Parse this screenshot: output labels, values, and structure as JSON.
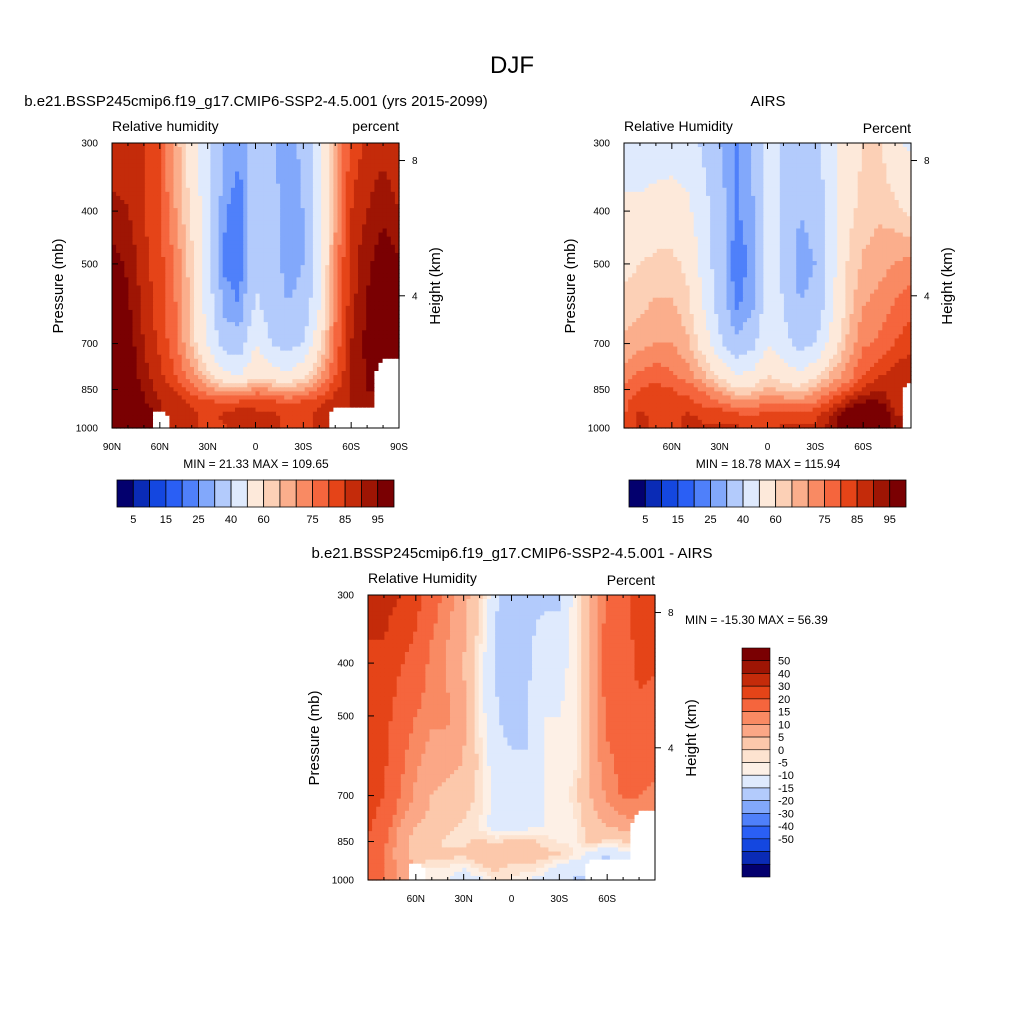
{
  "figure": {
    "title": "DJF",
    "palettes": {
      "absolute": [
        "#03006e",
        "#0a2bb6",
        "#1447e0",
        "#2a5ff5",
        "#4f80fa",
        "#82a8fb",
        "#b3cbfc",
        "#dfeafd",
        "#fde9da",
        "#fcd0b6",
        "#fbae8c",
        "#f98a63",
        "#f5653d",
        "#e54418",
        "#c42b0a",
        "#9e1504",
        "#7a0002"
      ],
      "difference": [
        "#03006e",
        "#0a2bb6",
        "#1447e0",
        "#2a5ff5",
        "#4f80fa",
        "#82a8fb",
        "#b3cbfc",
        "#dfeafd",
        "#fdf0e6",
        "#fde3d0",
        "#fcc8ab",
        "#fba786",
        "#f98a63",
        "#f5653d",
        "#e54418",
        "#c42b0a",
        "#9e1504",
        "#7a0002"
      ],
      "missing": "#ffffff"
    }
  },
  "chart_data": [
    {
      "type": "heatmap",
      "id": "model",
      "title": "b.e21.BSSP245cmip6.f19_g17.CMIP6-SSP2-4.5.001 (yrs 2015-2099)",
      "left_string": "Relative humidity",
      "right_string": "percent",
      "xlabel": "",
      "ylabel": "Pressure (mb)",
      "ylabel_right": "Height (km)",
      "x_ticks": [
        "90N",
        "60N",
        "30N",
        "0",
        "30S",
        "60S",
        "90S"
      ],
      "y_ticks": [
        "300",
        "400",
        "500",
        "700",
        "850",
        "1000"
      ],
      "y_ticks_right": [
        "8",
        "4"
      ],
      "stats": "MIN =  21.33  MAX = 109.65",
      "levels": [
        5,
        10,
        15,
        20,
        25,
        30,
        40,
        50,
        60,
        65,
        70,
        75,
        80,
        85,
        90,
        95
      ],
      "level_labels": [
        "5",
        "15",
        "25",
        "40",
        "60",
        "75",
        "85",
        "95"
      ],
      "lat": [
        90,
        80,
        70,
        60,
        50,
        40,
        30,
        20,
        10,
        0,
        -10,
        -20,
        -30,
        -40,
        -50,
        -60,
        -70,
        -80,
        -90
      ],
      "pressure": [
        300,
        400,
        500,
        600,
        700,
        800,
        850,
        900,
        950,
        1000
      ],
      "values": [
        [
          85,
          88,
          85,
          80,
          68,
          55,
          42,
          30,
          26,
          34,
          32,
          26,
          32,
          48,
          68,
          82,
          86,
          88,
          85
        ],
        [
          92,
          90,
          85,
          80,
          70,
          58,
          44,
          26,
          22,
          36,
          32,
          28,
          30,
          48,
          68,
          85,
          90,
          94,
          90
        ],
        [
          97,
          94,
          87,
          82,
          74,
          62,
          45,
          24,
          22,
          38,
          33,
          28,
          30,
          48,
          72,
          88,
          94,
          98,
          96
        ],
        [
          102,
          96,
          88,
          82,
          75,
          62,
          46,
          28,
          25,
          42,
          35,
          30,
          32,
          50,
          74,
          88,
          95,
          104,
          105
        ],
        [
          102,
          98,
          90,
          84,
          76,
          64,
          50,
          36,
          34,
          50,
          40,
          36,
          40,
          58,
          76,
          90,
          97,
          100,
          100
        ],
        [
          104,
          100,
          92,
          86,
          80,
          72,
          62,
          52,
          50,
          58,
          55,
          52,
          58,
          68,
          80,
          90,
          95,
          null,
          null
        ],
        [
          105,
          102,
          94,
          88,
          84,
          78,
          72,
          68,
          66,
          72,
          70,
          66,
          70,
          76,
          84,
          90,
          95,
          null,
          null
        ],
        [
          106,
          104,
          96,
          90,
          88,
          84,
          82,
          80,
          82,
          84,
          82,
          80,
          82,
          84,
          88,
          90,
          94,
          null,
          null
        ],
        [
          107,
          106,
          98,
          null,
          88,
          86,
          84,
          86,
          90,
          86,
          86,
          84,
          84,
          86,
          null,
          null,
          null,
          null,
          null
        ],
        [
          108,
          107,
          98,
          null,
          88,
          86,
          84,
          84,
          88,
          86,
          86,
          84,
          84,
          86,
          null,
          null,
          null,
          null,
          null
        ]
      ]
    },
    {
      "type": "heatmap",
      "id": "obs",
      "title": "AIRS",
      "left_string": "Relative Humidity",
      "right_string": "Percent",
      "xlabel": "",
      "ylabel": "Pressure (mb)",
      "ylabel_right": "Height (km)",
      "x_ticks": [
        "60N",
        "30N",
        "0",
        "30S",
        "60S"
      ],
      "y_ticks": [
        "300",
        "400",
        "500",
        "700",
        "850",
        "1000"
      ],
      "y_ticks_right": [
        "8",
        "4"
      ],
      "stats": "MIN =  18.78  MAX = 115.94",
      "levels": [
        5,
        10,
        15,
        20,
        25,
        30,
        40,
        50,
        60,
        65,
        70,
        75,
        80,
        85,
        90,
        95
      ],
      "level_labels": [
        "5",
        "15",
        "25",
        "40",
        "60",
        "75",
        "85",
        "95"
      ],
      "lat": [
        90,
        80,
        70,
        60,
        50,
        40,
        30,
        20,
        10,
        0,
        -10,
        -20,
        -30,
        -40,
        -50,
        -60,
        -70,
        -80,
        -90
      ],
      "pressure": [
        300,
        400,
        500,
        600,
        700,
        800,
        850,
        900,
        950,
        1000
      ],
      "values": [
        [
          45,
          44,
          45,
          46,
          44,
          38,
          30,
          24,
          30,
          44,
          38,
          32,
          38,
          46,
          56,
          60,
          62,
          52,
          48
        ],
        [
          52,
          52,
          54,
          54,
          52,
          44,
          34,
          24,
          28,
          44,
          38,
          30,
          32,
          46,
          58,
          62,
          64,
          62,
          58
        ],
        [
          58,
          60,
          62,
          62,
          58,
          46,
          34,
          22,
          26,
          46,
          38,
          28,
          30,
          46,
          60,
          66,
          68,
          70,
          72
        ],
        [
          62,
          64,
          66,
          66,
          62,
          50,
          36,
          24,
          28,
          46,
          40,
          30,
          32,
          48,
          62,
          70,
          72,
          76,
          78
        ],
        [
          66,
          68,
          70,
          70,
          66,
          56,
          42,
          32,
          36,
          50,
          44,
          36,
          40,
          54,
          66,
          74,
          76,
          80,
          84
        ],
        [
          72,
          76,
          78,
          76,
          72,
          66,
          58,
          50,
          52,
          60,
          56,
          52,
          58,
          66,
          72,
          80,
          84,
          88,
          88
        ],
        [
          76,
          80,
          82,
          80,
          78,
          74,
          68,
          62,
          62,
          66,
          64,
          62,
          68,
          74,
          78,
          86,
          90,
          86,
          null
        ],
        [
          78,
          84,
          84,
          82,
          82,
          78,
          76,
          72,
          72,
          76,
          74,
          74,
          76,
          82,
          90,
          96,
          96,
          88,
          null
        ],
        [
          80,
          86,
          84,
          84,
          86,
          84,
          84,
          82,
          80,
          82,
          82,
          82,
          84,
          90,
          100,
          110,
          108,
          90,
          null
        ],
        [
          80,
          86,
          84,
          84,
          86,
          86,
          86,
          86,
          84,
          84,
          86,
          86,
          86,
          92,
          104,
          114,
          112,
          92,
          null
        ]
      ]
    },
    {
      "type": "heatmap",
      "id": "diff",
      "title": "b.e21.BSSP245cmip6.f19_g17.CMIP6-SSP2-4.5.001 - AIRS",
      "left_string": "Relative Humidity",
      "right_string": "Percent",
      "xlabel": "",
      "ylabel": "Pressure (mb)",
      "ylabel_right": "Height (km)",
      "x_ticks": [
        "60N",
        "30N",
        "0",
        "30S",
        "60S"
      ],
      "y_ticks": [
        "300",
        "400",
        "500",
        "700",
        "850",
        "1000"
      ],
      "y_ticks_right": [
        "8",
        "4"
      ],
      "stats": "MIN = -15.30  MAX =  56.39",
      "levels": [
        -50,
        -40,
        -30,
        -20,
        -15,
        -10,
        -5,
        0,
        2.5,
        5,
        10,
        15,
        20,
        30,
        40,
        50
      ],
      "level_labels": [
        "50",
        "40",
        "30",
        "20",
        "15",
        "10",
        "5",
        "0",
        "-5",
        "-10",
        "-15",
        "-20",
        "-30",
        "-40",
        "-50"
      ],
      "lat": [
        90,
        80,
        70,
        60,
        50,
        40,
        30,
        20,
        10,
        0,
        -10,
        -20,
        -30,
        -40,
        -50,
        -60,
        -70,
        -80,
        -90
      ],
      "pressure": [
        300,
        400,
        500,
        600,
        700,
        800,
        850,
        900,
        950,
        1000
      ],
      "values": [
        [
          40,
          44,
          40,
          34,
          24,
          17,
          12,
          6,
          -4,
          -10,
          -6,
          -6,
          -6,
          2,
          12,
          22,
          24,
          36,
          37
        ],
        [
          40,
          38,
          31,
          26,
          18,
          14,
          10,
          2,
          -6,
          -8,
          -6,
          -2,
          -2,
          2,
          10,
          23,
          26,
          32,
          32
        ],
        [
          39,
          34,
          25,
          20,
          16,
          16,
          11,
          2,
          -4,
          -8,
          -5,
          0,
          0,
          2,
          12,
          22,
          26,
          28,
          24
        ],
        [
          40,
          32,
          22,
          16,
          13,
          12,
          10,
          4,
          -3,
          -4,
          -5,
          0,
          0,
          2,
          12,
          18,
          23,
          28,
          27
        ],
        [
          36,
          30,
          20,
          14,
          10,
          8,
          8,
          4,
          -2,
          0,
          -4,
          0,
          0,
          4,
          10,
          16,
          21,
          20,
          16
        ],
        [
          32,
          24,
          14,
          10,
          8,
          6,
          4,
          2,
          -2,
          -2,
          -1,
          0,
          0,
          2,
          8,
          10,
          11,
          null,
          null
        ],
        [
          29,
          22,
          12,
          8,
          6,
          4,
          4,
          6,
          4,
          6,
          6,
          4,
          2,
          2,
          6,
          4,
          5,
          null,
          null
        ],
        [
          28,
          20,
          12,
          8,
          6,
          6,
          6,
          8,
          10,
          8,
          8,
          6,
          6,
          2,
          -2,
          -6,
          -2,
          null,
          null
        ],
        [
          27,
          20,
          14,
          null,
          2,
          2,
          0,
          4,
          6,
          4,
          4,
          2,
          -2,
          -4,
          null,
          null,
          null,
          null,
          null
        ],
        [
          28,
          21,
          14,
          null,
          2,
          0,
          -2,
          -2,
          4,
          2,
          0,
          -2,
          -2,
          -6,
          null,
          null,
          null,
          null,
          null
        ]
      ]
    }
  ]
}
